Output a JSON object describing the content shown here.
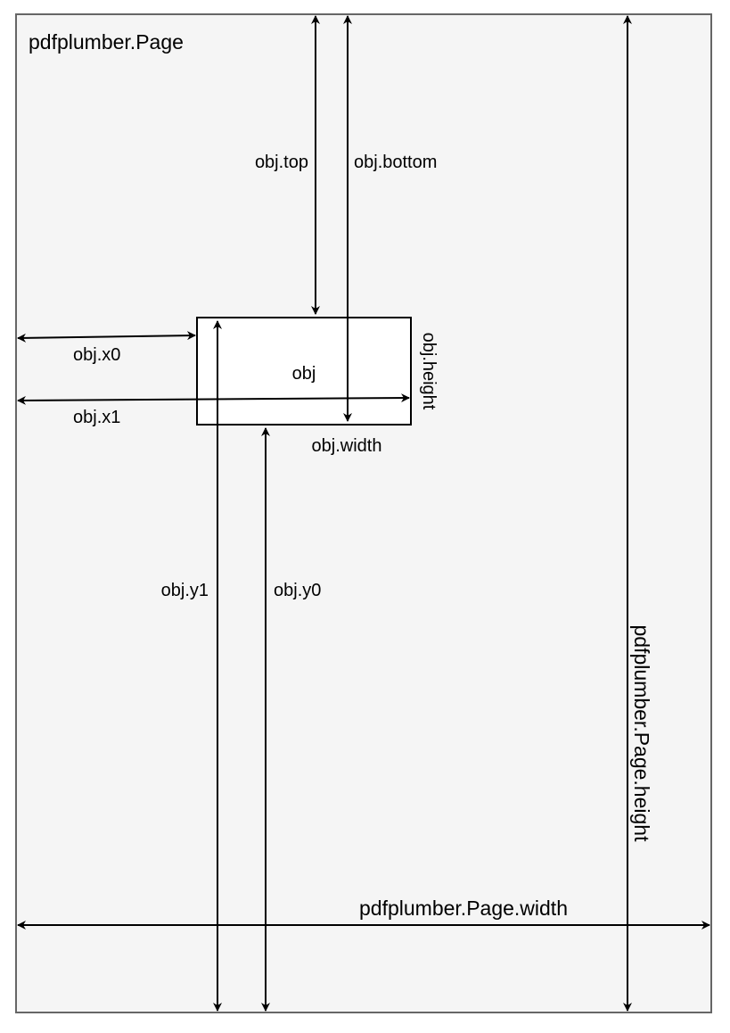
{
  "page": {
    "title": "pdfplumber.Page",
    "width_label": "pdfplumber.Page.width",
    "height_label": "pdfplumber.Page.height"
  },
  "object": {
    "label": "obj",
    "top": "obj.top",
    "bottom": "obj.bottom",
    "x0": "obj.x0",
    "x1": "obj.x1",
    "y0": "obj.y0",
    "y1": "obj.y1",
    "width": "obj.width",
    "height": "obj.height"
  },
  "colors": {
    "page_fill": "#f5f5f5",
    "page_border": "#666666",
    "object_fill": "#ffffff",
    "line": "#000000"
  }
}
